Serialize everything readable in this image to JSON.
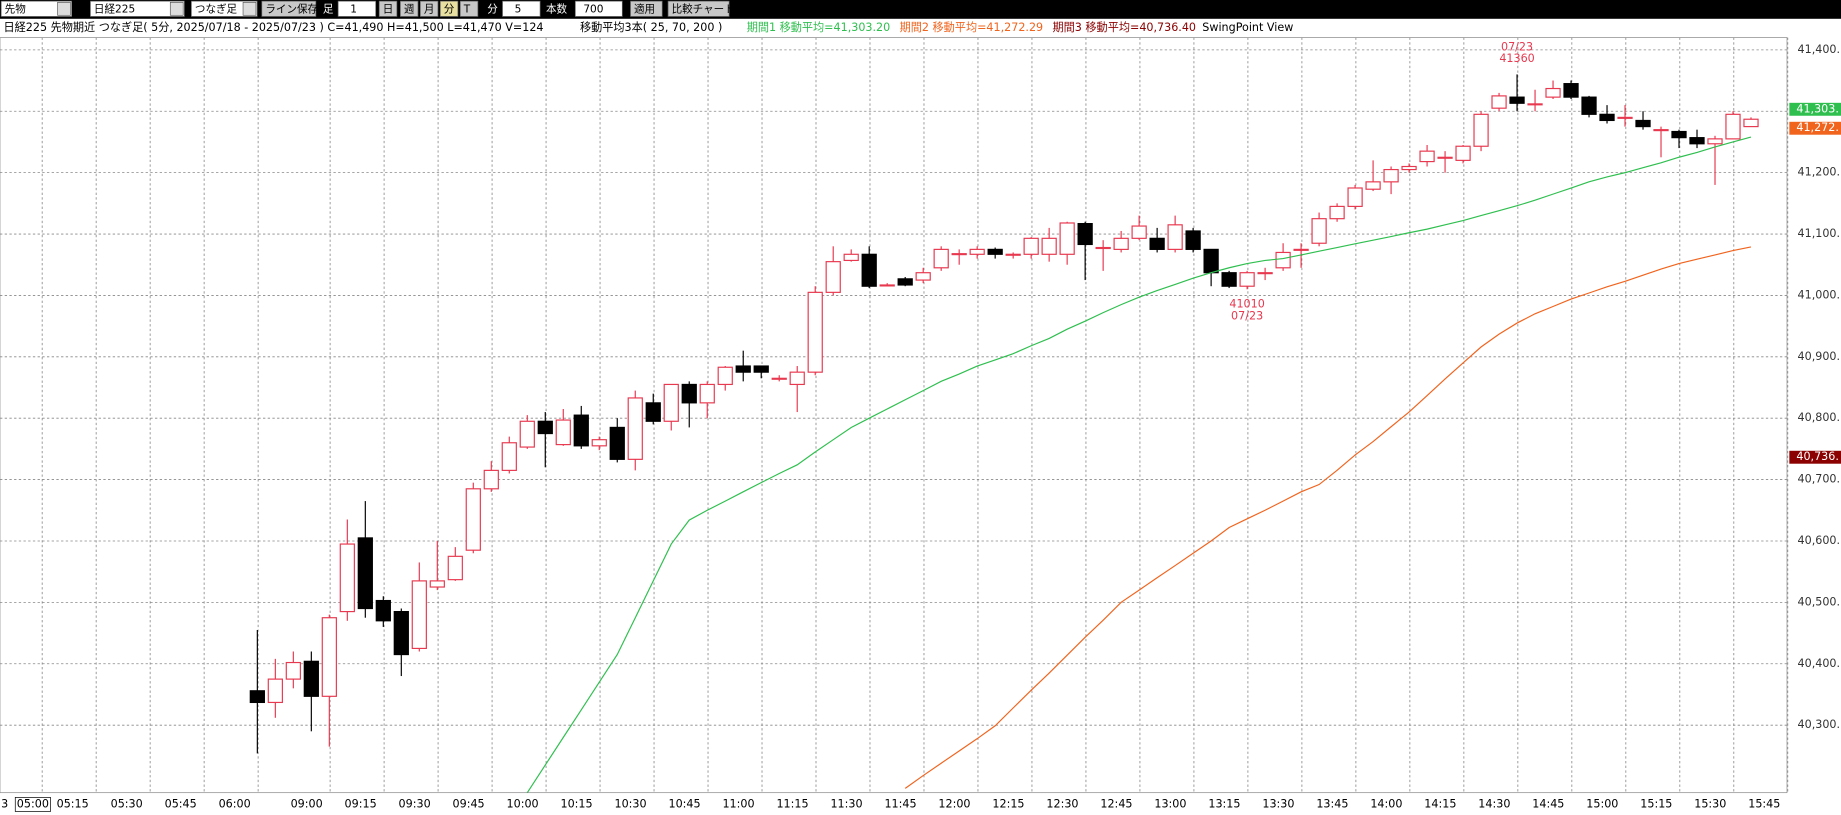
{
  "toolbar": {
    "market": "先物",
    "symbol": "日経225",
    "bar_type": "つなぎ足",
    "save_button": "ライン保存",
    "ashi": "足",
    "ashi_value": "1",
    "periods": [
      "日",
      "週",
      "月",
      "分",
      "T"
    ],
    "minutes_label": "分",
    "minutes": "5",
    "count_label": "本数",
    "count": "700",
    "apply": "適用",
    "compare": "比較チャート"
  },
  "chart_data": {
    "type": "candlestick",
    "title": "日経225 先物期近 つなぎ足( 5分, 2025/07/18 - 2025/07/23 )  C=41,490 H=41,500 L=41,470 V=124",
    "subtitle": "移動平均3本( 25, 70, 200 )",
    "view_label": "SwingPoint View",
    "up_color": "#e8384f",
    "down_color": "#000000",
    "open": [
      40356,
      40337,
      40375,
      40404,
      40347,
      40485,
      40605,
      40503,
      40485,
      40425,
      40525,
      40537,
      40585,
      40685,
      40715,
      40753,
      40795,
      40757,
      40805,
      40755,
      40785,
      40733,
      40825,
      40795,
      40855,
      40825,
      40855,
      40885,
      40885,
      40865,
      40855,
      40875,
      41005,
      41057,
      41067,
      41017,
      41027,
      41025,
      41045,
      41068,
      41067,
      41075,
      41067,
      41067,
      41067,
      41067,
      41117,
      41078,
      41075,
      41093,
      41093,
      41075,
      41105,
      41075,
      41037,
      41015,
      41037,
      41045,
      41075,
      41085,
      41125,
      41145,
      41173,
      41185,
      41205,
      41218,
      41225,
      41220,
      41243,
      41305,
      41323,
      41312,
      41323,
      41345,
      41323,
      41295,
      41290,
      41285,
      41270,
      41267,
      41257,
      41247,
      41255,
      41275
    ],
    "high": [
      40455,
      40408,
      40420,
      40420,
      40480,
      40635,
      40665,
      40510,
      40490,
      40565,
      40600,
      40590,
      40695,
      40730,
      40770,
      40805,
      40810,
      40815,
      40820,
      40770,
      40800,
      40845,
      40840,
      40855,
      40860,
      40860,
      40885,
      40910,
      40885,
      40870,
      40885,
      41015,
      41080,
      41075,
      41080,
      41020,
      41030,
      41045,
      41080,
      41075,
      41080,
      41078,
      41070,
      41095,
      41110,
      41120,
      41120,
      41090,
      41105,
      41130,
      41110,
      41130,
      41110,
      41075,
      41040,
      41040,
      41045,
      41085,
      41085,
      41135,
      41150,
      41180,
      41220,
      41210,
      41215,
      41245,
      41235,
      41245,
      41300,
      41330,
      41360,
      41335,
      41350,
      41350,
      41325,
      41310,
      41310,
      41300,
      41275,
      41270,
      41270,
      41260,
      41300,
      41290
    ],
    "low": [
      40254,
      40312,
      40360,
      40290,
      40265,
      40470,
      40475,
      40460,
      40380,
      40420,
      40520,
      40535,
      40580,
      40680,
      40710,
      40750,
      40720,
      40755,
      40750,
      40748,
      40728,
      40715,
      40790,
      40780,
      40785,
      40800,
      40845,
      40860,
      40865,
      40860,
      40810,
      40870,
      41000,
      41055,
      41012,
      41015,
      41015,
      41020,
      41040,
      41050,
      41060,
      41060,
      41060,
      41060,
      41055,
      41050,
      41025,
      41040,
      41070,
      41090,
      41070,
      41070,
      41070,
      41015,
      41012,
      41010,
      41025,
      41040,
      41045,
      41080,
      41120,
      41140,
      41170,
      41165,
      41200,
      41210,
      41200,
      41215,
      41235,
      41300,
      41300,
      41300,
      41320,
      41320,
      41290,
      41280,
      41275,
      41270,
      41225,
      41240,
      41240,
      41180,
      41255,
      41275
    ],
    "close": [
      40337,
      40375,
      40402,
      40347,
      40475,
      40595,
      40490,
      40470,
      40415,
      40535,
      40535,
      40575,
      40685,
      40715,
      40760,
      40795,
      40775,
      40797,
      40755,
      40765,
      40733,
      40833,
      40795,
      40855,
      40825,
      40855,
      40883,
      40875,
      40875,
      40865,
      40875,
      41005,
      41055,
      41067,
      41015,
      41017,
      41017,
      41037,
      41075,
      41068,
      41075,
      41067,
      41067,
      41093,
      41093,
      41118,
      41083,
      41078,
      41093,
      41113,
      41075,
      41115,
      41075,
      41037,
      41015,
      41037,
      41037,
      41070,
      41075,
      41125,
      41145,
      41175,
      41185,
      41205,
      41210,
      41235,
      41225,
      41243,
      41295,
      41325,
      41313,
      41312,
      41337,
      41323,
      41295,
      41285,
      41290,
      41275,
      41270,
      41257,
      41247,
      41255,
      41295,
      41287
    ],
    "series": [
      {
        "name": "期間1 移動平均=41,303.20",
        "color": "#2fbf4f",
        "badge": {
          "value": 41303.2,
          "label": "41,303."
        },
        "values": [
          null,
          null,
          null,
          null,
          null,
          null,
          null,
          null,
          null,
          null,
          null,
          null,
          null,
          null,
          null,
          40190,
          40235,
          40280,
          40325,
          40370,
          40415,
          40475,
          40535,
          40595,
          40634,
          40650,
          40665,
          40680,
          40695,
          40710,
          40724,
          40745,
          40765,
          40785,
          40800,
          40815,
          40830,
          40845,
          40860,
          40872,
          40885,
          40895,
          40905,
          40918,
          40930,
          40945,
          40958,
          40972,
          40985,
          40997,
          41008,
          41018,
          41028,
          41037,
          41045,
          41052,
          41057,
          41060,
          41066,
          41072,
          41078,
          41084,
          41090,
          41096,
          41102,
          41108,
          41115,
          41122,
          41130,
          41138,
          41146,
          41155,
          41165,
          41175,
          41185,
          41193,
          41200,
          41208,
          41216,
          41225,
          41233,
          41242,
          41250,
          41258
        ]
      },
      {
        "name": "期間2 移動平均=41,272.29",
        "color": "#f0641e",
        "badge": {
          "value": 41272.29,
          "label": "41,272."
        },
        "values": [
          null,
          null,
          null,
          null,
          null,
          null,
          null,
          null,
          null,
          null,
          null,
          null,
          null,
          null,
          null,
          null,
          null,
          null,
          null,
          null,
          null,
          null,
          null,
          null,
          null,
          null,
          null,
          null,
          null,
          null,
          null,
          null,
          null,
          null,
          null,
          null,
          40197,
          40218,
          40238,
          40258,
          40278,
          40299,
          40328,
          40357,
          40385,
          40414,
          40443,
          40471,
          40500,
          40520,
          40540,
          40560,
          40580,
          40600,
          40622,
          40636,
          40650,
          40665,
          40680,
          40692,
          40715,
          40740,
          40762,
          40786,
          40810,
          40837,
          40864,
          40890,
          40916,
          40937,
          40955,
          40970,
          40982,
          40994,
          41004,
          41014,
          41023,
          41033,
          41043,
          41052,
          41059,
          41066,
          41073,
          41079
        ]
      },
      {
        "name": "期間3 移動平均=40,736.40",
        "color": "#8b0000",
        "badge": {
          "value": 40736.4,
          "label": "40,736."
        }
      }
    ],
    "swing_points": [
      {
        "type": "high",
        "date": "07/23",
        "value": 41360
      },
      {
        "type": "low",
        "date": "07/23",
        "value": 41010
      }
    ],
    "ylim": [
      40190,
      41420
    ],
    "yticks": [
      {
        "value": 40300,
        "label": "40,300."
      },
      {
        "value": 40400,
        "label": "40,400."
      },
      {
        "value": 40500,
        "label": "40,500."
      },
      {
        "value": 40600,
        "label": "40,600."
      },
      {
        "value": 40700,
        "label": "40,700."
      },
      {
        "value": 40800,
        "label": "40,800."
      },
      {
        "value": 40900,
        "label": "40,900."
      },
      {
        "value": 41000,
        "label": "41,000."
      },
      {
        "value": 41100,
        "label": "41,100."
      },
      {
        "value": 41200,
        "label": "41,200."
      },
      {
        "value": 41300,
        "label": "41,300."
      },
      {
        "value": 41400,
        "label": "41,400."
      }
    ],
    "x_prefix": "3",
    "xlim": [
      -14.3,
      85
    ],
    "xticks": [
      {
        "value": -13,
        "label": "05:00"
      },
      {
        "value": -10,
        "label": "05:15"
      },
      {
        "value": -7,
        "label": "05:30"
      },
      {
        "value": -4,
        "label": "05:45"
      },
      {
        "value": -1,
        "label": "06:00"
      },
      {
        "value": 3,
        "label": "09:00"
      },
      {
        "value": 6,
        "label": "09:15"
      },
      {
        "value": 9,
        "label": "09:30"
      },
      {
        "value": 12,
        "label": "09:45"
      },
      {
        "value": 15,
        "label": "10:00"
      },
      {
        "value": 18,
        "label": "10:15"
      },
      {
        "value": 21,
        "label": "10:30"
      },
      {
        "value": 24,
        "label": "10:45"
      },
      {
        "value": 27,
        "label": "11:00"
      },
      {
        "value": 30,
        "label": "11:15"
      },
      {
        "value": 33,
        "label": "11:30"
      },
      {
        "value": 36,
        "label": "11:45"
      },
      {
        "value": 39,
        "label": "12:00"
      },
      {
        "value": 42,
        "label": "12:15"
      },
      {
        "value": 45,
        "label": "12:30"
      },
      {
        "value": 48,
        "label": "12:45"
      },
      {
        "value": 51,
        "label": "13:00"
      },
      {
        "value": 54,
        "label": "13:15"
      },
      {
        "value": 57,
        "label": "13:30"
      },
      {
        "value": 60,
        "label": "13:45"
      },
      {
        "value": 63,
        "label": "14:00"
      },
      {
        "value": 66,
        "label": "14:15"
      },
      {
        "value": 69,
        "label": "14:30"
      },
      {
        "value": 72,
        "label": "14:45"
      },
      {
        "value": 75,
        "label": "15:00"
      },
      {
        "value": 78,
        "label": "15:15"
      },
      {
        "value": 81,
        "label": "15:30"
      },
      {
        "value": 84,
        "label": "15:45"
      }
    ],
    "grid": true
  }
}
